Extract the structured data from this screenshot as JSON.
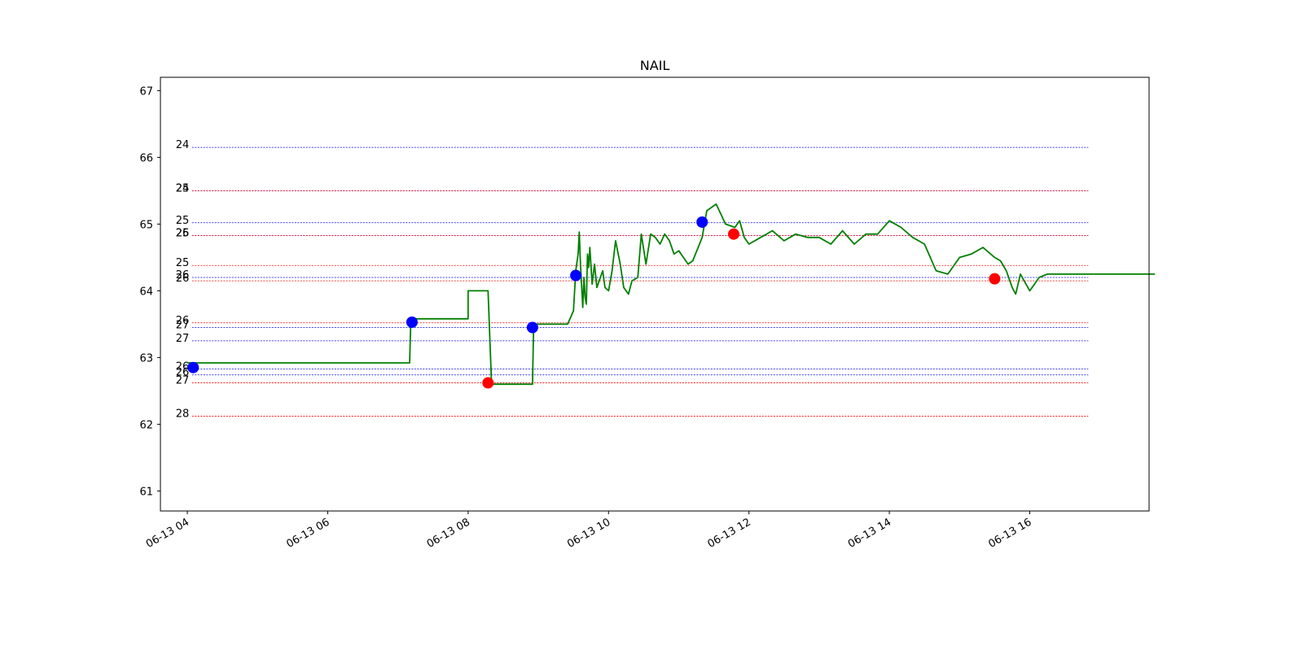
{
  "chart_data": {
    "type": "line",
    "title": "NAIL",
    "xlabel": "",
    "ylabel": "",
    "xlim": [
      "06-13 03:37",
      "06-13 17:42"
    ],
    "ylim": [
      60.7,
      67.2
    ],
    "grid": false,
    "x_ticks": [
      "06-13 04",
      "06-13 06",
      "06-13 08",
      "06-13 10",
      "06-13 12",
      "06-13 14",
      "06-13 16"
    ],
    "y_ticks": [
      "61",
      "62",
      "63",
      "64",
      "65",
      "66",
      "67"
    ],
    "colors": {
      "price": "#008000",
      "buy": "#0000ff",
      "sell": "#ff0000"
    },
    "series": [
      {
        "color": "#008000",
        "points": [
          [
            "06-13 04:00",
            62.92
          ],
          [
            "06-13 07:10",
            62.92
          ],
          [
            "06-13 07:11",
            63.58
          ],
          [
            "06-13 08:00",
            63.58
          ],
          [
            "06-13 08:00",
            64.0
          ],
          [
            "06-13 08:17",
            64.0
          ],
          [
            "06-13 08:20",
            62.6
          ],
          [
            "06-13 08:55",
            62.6
          ],
          [
            "06-13 08:56",
            63.5
          ],
          [
            "06-13 09:25",
            63.5
          ],
          [
            "06-13 09:30",
            63.7
          ],
          [
            "06-13 09:32",
            64.3
          ],
          [
            "06-13 09:34",
            64.55
          ],
          [
            "06-13 09:35",
            64.88
          ],
          [
            "06-13 09:36",
            64.4
          ],
          [
            "06-13 09:38",
            63.75
          ],
          [
            "06-13 09:39",
            64.2
          ],
          [
            "06-13 09:40",
            63.9
          ],
          [
            "06-13 09:41",
            63.8
          ],
          [
            "06-13 09:42",
            64.55
          ],
          [
            "06-13 09:43",
            64.35
          ],
          [
            "06-13 09:44",
            64.65
          ],
          [
            "06-13 09:46",
            64.1
          ],
          [
            "06-13 09:48",
            64.4
          ],
          [
            "06-13 09:50",
            64.05
          ],
          [
            "06-13 09:55",
            64.3
          ],
          [
            "06-13 09:57",
            64.05
          ],
          [
            "06-13 10:00",
            64.0
          ],
          [
            "06-13 10:03",
            64.3
          ],
          [
            "06-13 10:06",
            64.75
          ],
          [
            "06-13 10:10",
            64.4
          ],
          [
            "06-13 10:13",
            64.05
          ],
          [
            "06-13 10:17",
            63.95
          ],
          [
            "06-13 10:20",
            64.15
          ],
          [
            "06-13 10:25",
            64.2
          ],
          [
            "06-13 10:28",
            64.85
          ],
          [
            "06-13 10:32",
            64.4
          ],
          [
            "06-13 10:36",
            64.85
          ],
          [
            "06-13 10:40",
            64.8
          ],
          [
            "06-13 10:44",
            64.7
          ],
          [
            "06-13 10:48",
            64.85
          ],
          [
            "06-13 10:52",
            64.75
          ],
          [
            "06-13 10:56",
            64.55
          ],
          [
            "06-13 11:00",
            64.6
          ],
          [
            "06-13 11:04",
            64.5
          ],
          [
            "06-13 11:08",
            64.4
          ],
          [
            "06-13 11:12",
            64.45
          ],
          [
            "06-13 11:20",
            64.8
          ],
          [
            "06-13 11:24",
            65.2
          ],
          [
            "06-13 11:28",
            65.25
          ],
          [
            "06-13 11:32",
            65.3
          ],
          [
            "06-13 11:36",
            65.15
          ],
          [
            "06-13 11:40",
            65.0
          ],
          [
            "06-13 11:48",
            64.95
          ],
          [
            "06-13 11:52",
            65.05
          ],
          [
            "06-13 11:56",
            64.8
          ],
          [
            "06-13 12:00",
            64.7
          ],
          [
            "06-13 12:10",
            64.8
          ],
          [
            "06-13 12:20",
            64.9
          ],
          [
            "06-13 12:30",
            64.75
          ],
          [
            "06-13 12:40",
            64.85
          ],
          [
            "06-13 12:50",
            64.8
          ],
          [
            "06-13 13:00",
            64.8
          ],
          [
            "06-13 13:10",
            64.7
          ],
          [
            "06-13 13:20",
            64.9
          ],
          [
            "06-13 13:30",
            64.7
          ],
          [
            "06-13 13:40",
            64.85
          ],
          [
            "06-13 13:50",
            64.85
          ],
          [
            "06-13 14:00",
            65.05
          ],
          [
            "06-13 14:10",
            64.95
          ],
          [
            "06-13 14:20",
            64.8
          ],
          [
            "06-13 14:30",
            64.7
          ],
          [
            "06-13 14:40",
            64.3
          ],
          [
            "06-13 14:50",
            64.25
          ],
          [
            "06-13 15:00",
            64.5
          ],
          [
            "06-13 15:10",
            64.55
          ],
          [
            "06-13 15:20",
            64.65
          ],
          [
            "06-13 15:30",
            64.5
          ],
          [
            "06-13 15:35",
            64.45
          ],
          [
            "06-13 15:40",
            64.3
          ],
          [
            "06-13 15:45",
            64.05
          ],
          [
            "06-13 15:48",
            63.95
          ],
          [
            "06-13 15:52",
            64.25
          ],
          [
            "06-13 16:00",
            64.0
          ],
          [
            "06-13 16:08",
            64.2
          ],
          [
            "06-13 16:15",
            64.25
          ],
          [
            "06-13 17:00",
            64.25
          ],
          [
            "06-13 17:47",
            64.25
          ]
        ]
      }
    ],
    "markers": [
      {
        "kind": "buy",
        "x": "06-13 04:05",
        "y": 62.85
      },
      {
        "kind": "buy",
        "x": "06-13 07:12",
        "y": 63.53
      },
      {
        "kind": "sell",
        "x": "06-13 08:17",
        "y": 62.62
      },
      {
        "kind": "buy",
        "x": "06-13 08:55",
        "y": 63.45
      },
      {
        "kind": "buy",
        "x": "06-13 09:32",
        "y": 64.23
      },
      {
        "kind": "buy",
        "x": "06-13 11:20",
        "y": 65.03
      },
      {
        "kind": "sell",
        "x": "06-13 11:47",
        "y": 64.85
      },
      {
        "kind": "sell",
        "x": "06-13 15:30",
        "y": 64.18
      }
    ],
    "levels": [
      {
        "label": "24",
        "y": 66.15,
        "color": "#0000ff"
      },
      {
        "label": "24",
        "y": 65.5,
        "color": "#0000ff"
      },
      {
        "label": "25",
        "y": 65.5,
        "color": "#ff0000"
      },
      {
        "label": "25",
        "y": 65.02,
        "color": "#0000ff"
      },
      {
        "label": "25",
        "y": 64.83,
        "color": "#0000ff"
      },
      {
        "label": "26",
        "y": 64.83,
        "color": "#ff0000"
      },
      {
        "label": "25",
        "y": 64.38,
        "color": "#ff0000"
      },
      {
        "label": "26",
        "y": 64.2,
        "color": "#0000ff"
      },
      {
        "label": "26",
        "y": 64.15,
        "color": "#ff0000"
      },
      {
        "label": "26",
        "y": 63.52,
        "color": "#ff0000"
      },
      {
        "label": "27",
        "y": 63.45,
        "color": "#0000ff"
      },
      {
        "label": "27",
        "y": 63.25,
        "color": "#0000ff"
      },
      {
        "label": "26",
        "y": 62.83,
        "color": "#0000ff"
      },
      {
        "label": "26",
        "y": 62.74,
        "color": "#0000ff"
      },
      {
        "label": "27",
        "y": 62.62,
        "color": "#ff0000"
      },
      {
        "label": "28",
        "y": 62.12,
        "color": "#ff0000"
      }
    ],
    "level_span": [
      "06-13 04:04",
      "06-13 16:50"
    ]
  }
}
